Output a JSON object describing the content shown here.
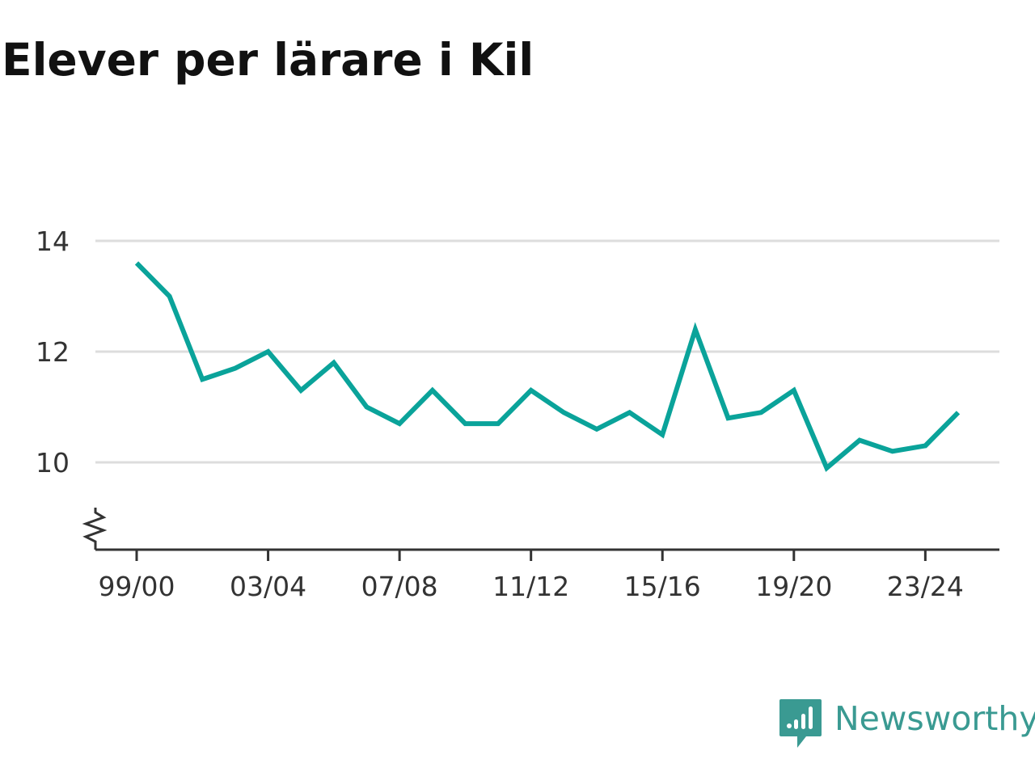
{
  "title": "Elever per lärare i Kil",
  "colors": {
    "line": "#0aa39a",
    "grid": "#dddddd",
    "axis": "#333333",
    "brand": "#3a9a92"
  },
  "chart_data": {
    "type": "line",
    "title": "Elever per lärare i Kil",
    "xlabel": "",
    "ylabel": "",
    "categories": [
      "99/00",
      "00/01",
      "01/02",
      "02/03",
      "03/04",
      "04/05",
      "05/06",
      "06/07",
      "07/08",
      "08/09",
      "09/10",
      "10/11",
      "11/12",
      "12/13",
      "13/14",
      "14/15",
      "15/16",
      "16/17",
      "17/18",
      "18/19",
      "19/20",
      "20/21",
      "21/22",
      "22/23",
      "23/24",
      "24/25"
    ],
    "values": [
      13.6,
      13.0,
      11.5,
      11.7,
      12.0,
      11.3,
      11.8,
      11.0,
      10.7,
      11.3,
      10.7,
      10.7,
      11.3,
      10.9,
      10.6,
      10.9,
      10.5,
      12.4,
      10.8,
      10.9,
      11.3,
      9.9,
      10.4,
      10.2,
      10.3,
      10.9
    ],
    "x_tick_labels": [
      "99/00",
      "03/04",
      "07/08",
      "11/12",
      "15/16",
      "19/20",
      "23/24"
    ],
    "y_ticks": [
      10,
      12,
      14
    ],
    "ylim": [
      8.6,
      14
    ],
    "y_axis_break": true,
    "grid": true,
    "legend": "none"
  },
  "branding": {
    "name": "Newsworthy",
    "icon": "newsworthy-logo-icon"
  }
}
